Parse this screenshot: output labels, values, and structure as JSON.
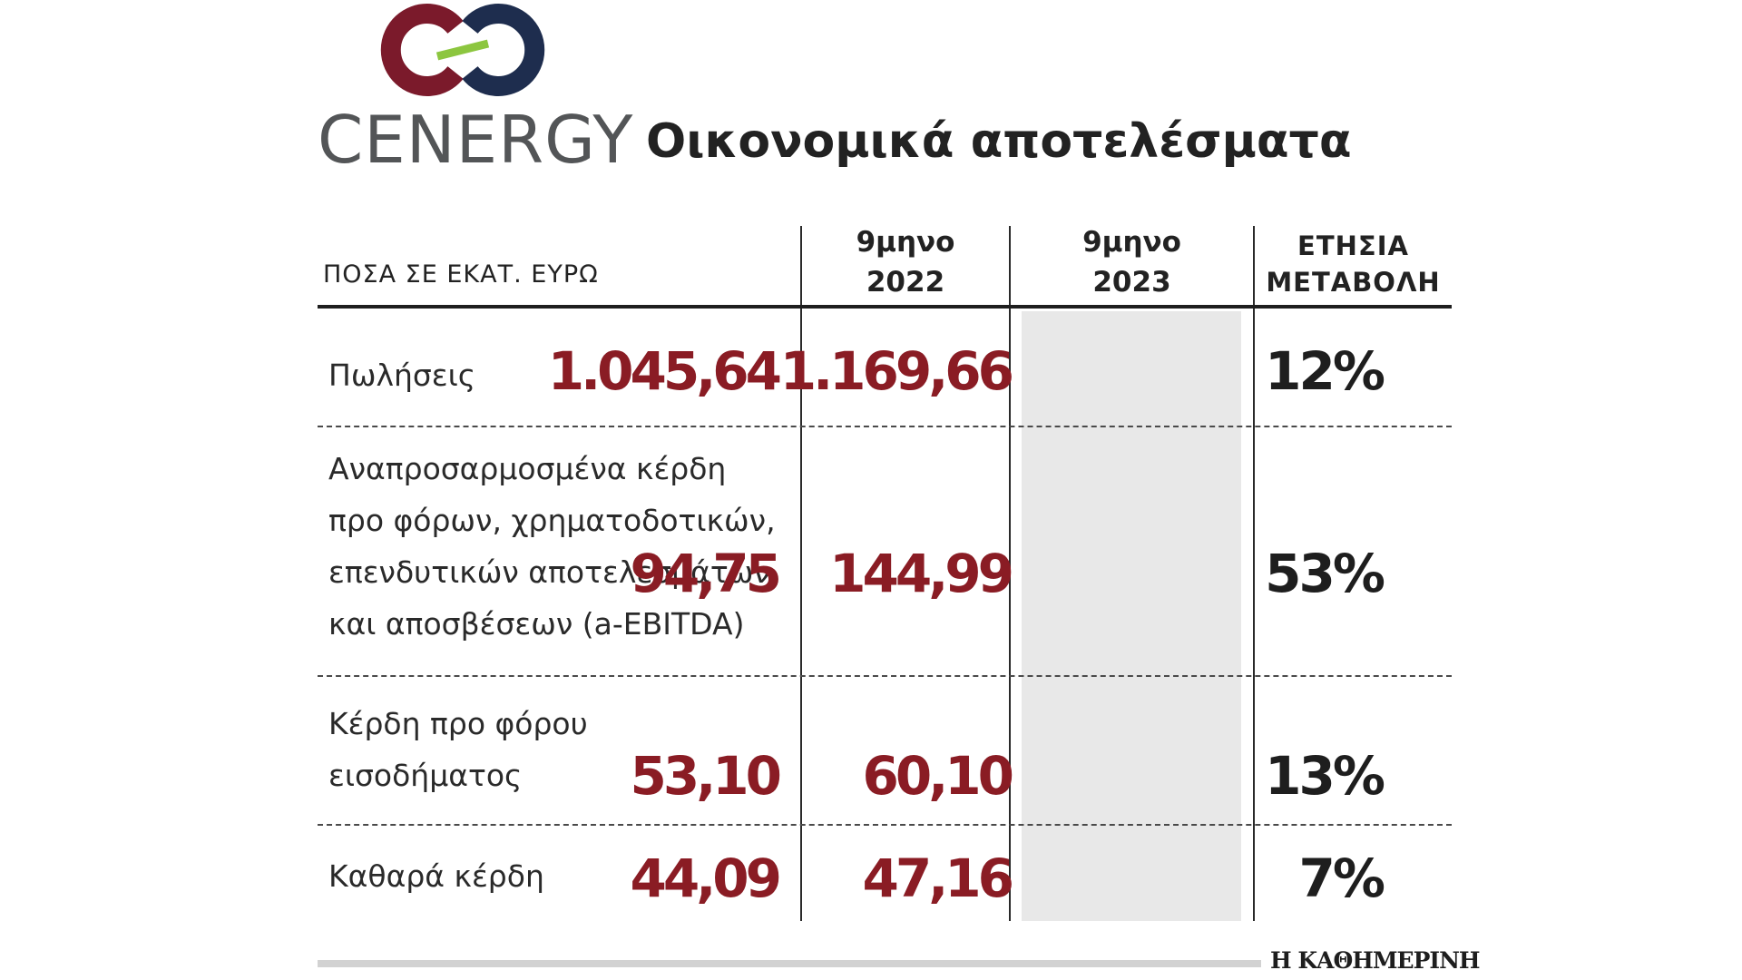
{
  "brand": {
    "logo_word": "CENERGY",
    "colors": {
      "left_ring": "#7b1a2b",
      "right_ring": "#1e2d4e",
      "link": "#8cc63f",
      "word": "#535557"
    }
  },
  "title": "Οικονομικά αποτελέσματα",
  "table": {
    "header": {
      "label": "ΠΟΣΑ ΣΕ ΕΚΑΤ. ΕΥΡΩ",
      "col_2022_line1": "9μηνο",
      "col_2022_line2": "2022",
      "col_2023_line1": "9μηνο",
      "col_2023_line2": "2023",
      "change_line1": "ΕΤΗΣΙΑ",
      "change_line2": "ΜΕΤΑΒΟΛΗ"
    },
    "rows": [
      {
        "label_lines": [
          "Πωλήσεις"
        ],
        "v2022": "1.045,64",
        "v2023": "1.169,66",
        "change": "12%"
      },
      {
        "label_lines": [
          "Αναπροσαρμοσμένα κέρδη",
          "προ φόρων, χρηματοδοτικών,",
          "επενδυτικών αποτελεσμάτων",
          "και αποσβέσεων (a-EBITDA)"
        ],
        "v2022": "94,75",
        "v2023": "144,99",
        "change": "53%"
      },
      {
        "label_lines": [
          "Κέρδη προ φόρου",
          "εισοδήματος"
        ],
        "v2022": "53,10",
        "v2023": "60,10",
        "change": "13%"
      },
      {
        "label_lines": [
          "Καθαρά κέρδη"
        ],
        "v2022": "44,09",
        "v2023": "47,16",
        "change": "7%"
      }
    ],
    "colors": {
      "value_color": "#8a1c24",
      "change_color": "#1e1e1e",
      "highlight_column": "#e8e8e8"
    }
  },
  "footer": {
    "brand": "Η ΚΑΘΗΜΕΡΙΝΗ"
  }
}
